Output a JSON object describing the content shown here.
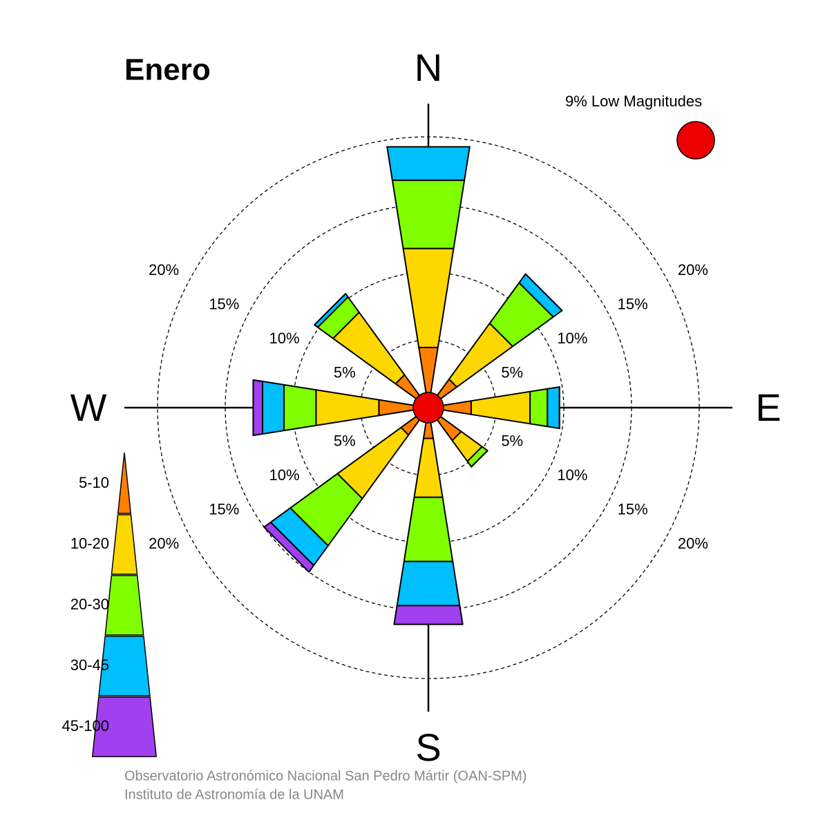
{
  "chart_data": {
    "type": "windrose",
    "title": "Enero",
    "categories": [
      "N",
      null,
      "E",
      null,
      "S",
      null,
      "W",
      null
    ],
    "series": [
      {
        "name": "5-10",
        "color": "#ff8000",
        "values": [
          4.5,
          2.6,
          3.2,
          3.0,
          2.3,
          2.5,
          3.7,
          3.0
        ]
      },
      {
        "name": "10-20",
        "color": "#ffd700",
        "values": [
          7.4,
          5.1,
          4.4,
          1.9,
          4.4,
          5.8,
          4.7,
          5.7
        ]
      },
      {
        "name": "20-30",
        "color": "#7fff00",
        "values": [
          5.1,
          3.7,
          1.3,
          0.5,
          4.8,
          4.3,
          2.4,
          1.4
        ]
      },
      {
        "name": "30-45",
        "color": "#00bfff",
        "values": [
          2.5,
          0.8,
          0.9,
          0,
          3.3,
          1.8,
          1.6,
          0.3
        ]
      },
      {
        "name": "45-100",
        "color": "#a040f0",
        "values": [
          0,
          0,
          0,
          0,
          1.4,
          0.6,
          0.7,
          0
        ]
      }
    ],
    "rlim": [
      0,
      20
    ],
    "rticks": [
      {
        "value": 5,
        "label": "5%"
      },
      {
        "value": 10,
        "label": "10%"
      },
      {
        "value": 15,
        "label": "15%"
      },
      {
        "value": 20,
        "label": "20%"
      }
    ],
    "calm": {
      "value": 9,
      "label": "9% Low Magnitudes",
      "color": "#ee0000"
    },
    "footer": [
      "Observatorio Astronómico Nacional San Pedro Mártir (OAN-SPM)",
      "Instituto de Astronomía de la UNAM"
    ]
  }
}
